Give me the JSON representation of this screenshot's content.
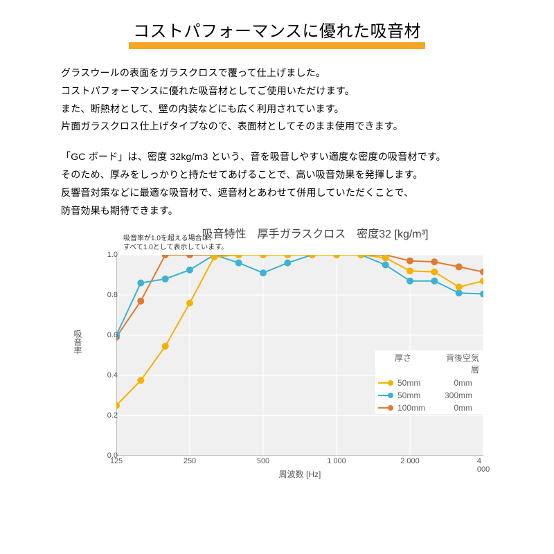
{
  "title": "コストパフォーマンスに優れた吸音材",
  "title_underline_color": "#f5a623",
  "para1": [
    "グラスウールの表面をガラスクロスで覆って仕上げました。",
    "コストパフォーマンスに優れた吸音材としてご使用いただけます。",
    "また、断熱材として、壁の内装などにも広く利用されています。",
    "片面ガラスクロス仕上げタイプなので、表面材としてそのまま使用できます。"
  ],
  "para2": [
    "「GC ボード」は、密度 32kg/m3 という、音を吸音しやすい適度な密度の吸音材です。",
    "そのため、厚みをしっかりと持たせてあげることで、高い吸音効果を発揮します。",
    "反響音対策などに最適な吸音材で、遮音材とあわせて併用していただくことで、",
    "防音効果も期待できます。"
  ],
  "chart": {
    "type": "line",
    "title": "吸音特性　厚手ガラスクロス　密度32 [kg/m³]",
    "note_line1": "吸音率が1.0を超える場合は、",
    "note_line2": "すべて1.0として表示しています。",
    "x_label": "周波数 [Hz]",
    "y_label": "吸音率",
    "y_min": 0.0,
    "y_max": 1.0,
    "y_ticks": [
      0.0,
      0.2,
      0.4,
      0.6,
      0.8,
      1.0
    ],
    "y_tick_labels": [
      "0.0",
      "0.2",
      "0.4",
      "0.6",
      "0.8",
      "1.0"
    ],
    "x_ticks_index": [
      0,
      3,
      6,
      9,
      12,
      15
    ],
    "x_tick_labels": [
      "125",
      "250",
      "500",
      "1 000",
      "2 000",
      "4 000"
    ],
    "n_points": 16,
    "plot_bg": "#f0f0f0",
    "grid_color": "#ffffff",
    "axis_color": "#888888",
    "tick_font_color": "#555555",
    "legend": {
      "header_thickness": "厚さ",
      "header_airgap": "背後空気層",
      "rows": [
        {
          "thickness": "50mm",
          "airgap": "0mm",
          "series": "s1"
        },
        {
          "thickness": "50mm",
          "airgap": "300mm",
          "series": "s2"
        },
        {
          "thickness": "100mm",
          "airgap": "0mm",
          "series": "s3"
        }
      ]
    },
    "series": {
      "s1": {
        "name": "50mm / 0mm",
        "color": "#f5b200",
        "marker": "circle",
        "line_width": 2,
        "marker_size": 5,
        "values": [
          0.25,
          0.375,
          0.545,
          0.76,
          0.99,
          1.0,
          1.0,
          1.0,
          1.0,
          1.0,
          1.0,
          0.985,
          0.92,
          0.915,
          0.84,
          0.87
        ]
      },
      "s2": {
        "name": "50mm / 300mm",
        "color": "#3bb3d1",
        "marker": "circle",
        "line_width": 2,
        "marker_size": 5,
        "values": [
          0.6,
          0.86,
          0.88,
          0.925,
          1.0,
          0.96,
          0.91,
          0.96,
          1.0,
          1.0,
          1.0,
          0.95,
          0.87,
          0.87,
          0.81,
          0.805
        ]
      },
      "s3": {
        "name": "100mm / 0mm",
        "color": "#e07a2e",
        "marker": "circle",
        "line_width": 2,
        "marker_size": 5,
        "values": [
          0.59,
          0.77,
          1.0,
          1.0,
          1.0,
          1.0,
          1.0,
          1.0,
          1.0,
          1.0,
          1.0,
          1.0,
          0.97,
          0.965,
          0.94,
          0.915
        ]
      }
    }
  }
}
